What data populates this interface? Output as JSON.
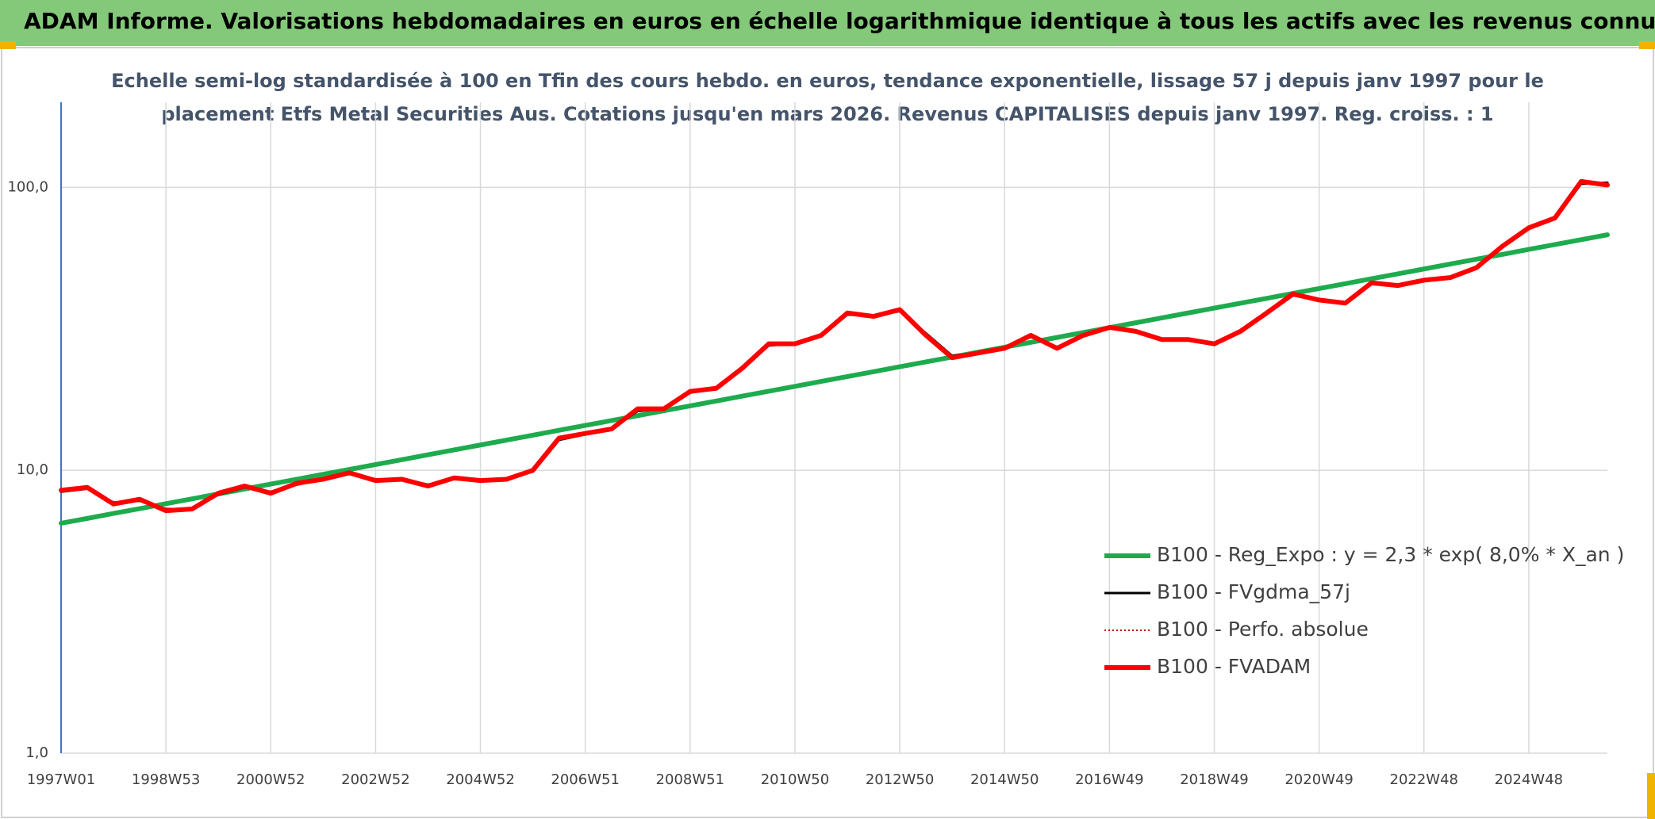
{
  "chart_data": {
    "type": "line",
    "title": "ADAM Informe. Valorisations hebdomadaires en euros en échelle logarithmique identique à tous les actifs avec les revenus connus capitalisés",
    "subtitle": [
      "Echelle semi-log standardisée à 100 en Tfin des cours hebdo. en euros, tendance exponentielle, lissage 57 j depuis janv 1997 pour le",
      "placement Etfs Metal Securities Aus. Cotations jusqu'en mars 2026. Revenus CAPITALISES depuis janv 1997. Reg. croiss. : 1"
    ],
    "log_scale": true,
    "grid": true,
    "legend": "right",
    "ylim": [
      1,
      200
    ],
    "yticks": [
      {
        "value": 1,
        "label": "1,0"
      },
      {
        "value": 10,
        "label": "10,0"
      },
      {
        "value": 100,
        "label": "100,0"
      }
    ],
    "categories": [
      "1997W01",
      null,
      null,
      null,
      "1998W53",
      null,
      null,
      null,
      "2000W52",
      null,
      null,
      null,
      "2002W52",
      null,
      null,
      null,
      "2004W52",
      null,
      null,
      null,
      "2006W51",
      null,
      null,
      null,
      "2008W51",
      null,
      null,
      null,
      "2010W50",
      null,
      null,
      null,
      "2012W50",
      null,
      null,
      null,
      "2014W50",
      null,
      null,
      null,
      "2016W49",
      null,
      null,
      null,
      "2018W49",
      null,
      null,
      null,
      "2020W49",
      null,
      null,
      null,
      "2022W48",
      null,
      null,
      null,
      "2024W48",
      null,
      null,
      null
    ],
    "series": [
      {
        "name": "B100 - Reg_Expo : y = 2,3 * exp( 8,0% *  X_an )",
        "color": "#1eab4e",
        "style": "solid",
        "width": 6,
        "values": [
          6.5,
          6.76,
          7.04,
          7.32,
          7.62,
          7.93,
          8.25,
          8.59,
          8.94,
          9.3,
          9.68,
          10.07,
          10.48,
          10.9,
          11.35,
          11.81,
          12.29,
          12.79,
          13.31,
          13.85,
          14.41,
          14.99,
          15.6,
          16.24,
          16.9,
          17.58,
          18.3,
          19.04,
          19.81,
          20.62,
          21.45,
          22.32,
          23.23,
          24.17,
          25.15,
          26.17,
          27.24,
          28.34,
          29.49,
          30.69,
          31.94,
          33.23,
          34.58,
          35.99,
          37.45,
          38.97,
          40.55,
          42.2,
          43.91,
          45.69,
          47.55,
          49.48,
          51.49,
          53.58,
          55.75,
          58.01,
          60.37,
          62.82,
          65.37,
          68.02
        ]
      },
      {
        "name": "B100 - FVgdma_57j",
        "color": "#000000",
        "style": "solid",
        "width": 3,
        "values": [
          8.4,
          8.6,
          7.7,
          7.8,
          7.3,
          7.3,
          8.2,
          8.7,
          8.4,
          8.9,
          9.3,
          9.7,
          9.3,
          9.3,
          8.9,
          9.3,
          9.2,
          9.3,
          9.9,
          12.8,
          13.4,
          14.0,
          16.2,
          16.5,
          18.8,
          19.6,
          22.8,
          27.6,
          28.1,
          29.8,
          35.5,
          35.2,
          36.5,
          30.5,
          25.4,
          26.0,
          27.0,
          29.6,
          27.3,
          29.8,
          31.8,
          31.0,
          29.2,
          29.0,
          28.2,
          30.8,
          35.6,
          41.5,
          40.2,
          39.2,
          45.5,
          45.2,
          46.8,
          48.0,
          51.8,
          61.5,
          71.5,
          77.5,
          103,
          104
        ]
      },
      {
        "name": "B100 - Perfo. absolue",
        "color": "#c00000",
        "style": "dotted",
        "width": 2,
        "values": [
          8.5,
          8.7,
          7.6,
          7.9,
          7.2,
          7.3,
          8.3,
          8.8,
          8.3,
          9.0,
          9.3,
          9.8,
          9.2,
          9.3,
          8.8,
          9.4,
          9.2,
          9.3,
          10.0,
          13.0,
          13.5,
          14.0,
          16.5,
          16.5,
          19.0,
          19.5,
          23,
          28,
          28,
          30,
          36,
          35,
          37,
          30,
          25,
          26,
          27,
          30,
          27,
          30,
          32,
          31,
          29,
          29,
          28,
          31,
          36,
          42,
          40,
          39,
          46,
          45,
          47,
          48,
          52,
          62,
          72,
          78,
          105,
          102
        ]
      },
      {
        "name": "B100 - FVADAM",
        "color": "#ff0000",
        "style": "solid",
        "width": 6,
        "values": [
          8.5,
          8.7,
          7.6,
          7.9,
          7.2,
          7.3,
          8.3,
          8.8,
          8.3,
          9.0,
          9.3,
          9.8,
          9.2,
          9.3,
          8.8,
          9.4,
          9.2,
          9.3,
          10.0,
          13.0,
          13.5,
          14.0,
          16.5,
          16.5,
          19.0,
          19.5,
          23,
          28,
          28,
          30,
          36,
          35,
          37,
          30,
          25,
          26,
          27,
          30,
          27,
          30,
          32,
          31,
          29,
          29,
          28,
          31,
          36,
          42,
          40,
          39,
          46,
          45,
          47,
          48,
          52,
          62,
          72,
          78,
          105,
          102
        ]
      }
    ]
  }
}
